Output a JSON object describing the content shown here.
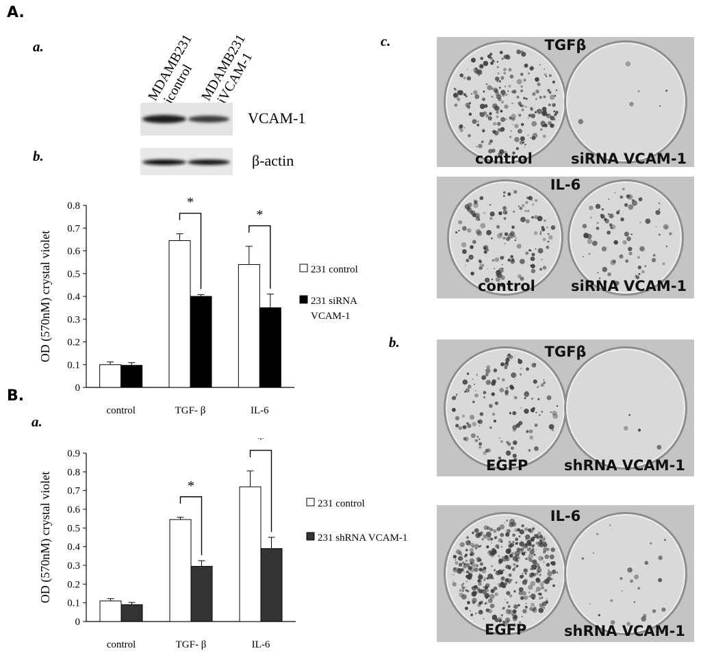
{
  "panels": {
    "A": "A.",
    "B": "B.",
    "a_top": "a.",
    "b_top": "b.",
    "c_top": "c.",
    "b_right": "b.",
    "a_bottom": "a."
  },
  "western": {
    "lane1_line1": "MDAMB231",
    "lane1_line2": "sicontrol",
    "lane2_line1": "MDAMB231",
    "lane2_line2": "siVCAM-1",
    "blot1_label": "VCAM-1",
    "blot2_label": "β-actin"
  },
  "photos": {
    "c1": {
      "top_label": "TGFβ",
      "left_label": "control",
      "right_label": "siRNA VCAM-1"
    },
    "c2": {
      "top_label": "IL-6",
      "left_label": "control",
      "right_label": "siRNA VCAM-1"
    },
    "b1": {
      "top_label": "TGFβ",
      "left_label": "EGFP",
      "right_label": "shRNA VCAM-1"
    },
    "b2": {
      "top_label": "IL-6",
      "left_label": "EGFP",
      "right_label": "shRNA VCAM-1"
    }
  },
  "chart_data": [
    {
      "type": "bar",
      "ylabel": "OD (570nM) crystal violet",
      "categories": [
        "control",
        "TGF- β",
        "IL-6"
      ],
      "ylim": [
        0,
        0.8
      ],
      "yticks": [
        "0",
        "0.1",
        "0.2",
        "0.3",
        "0.4",
        "0.5",
        "0.6",
        "0.7",
        "0.8"
      ],
      "series": [
        {
          "name": "231 control",
          "color": "#ffffff",
          "values": [
            0.1,
            0.645,
            0.54
          ],
          "errors": [
            0.012,
            0.03,
            0.08
          ]
        },
        {
          "name": "231 siRNA VCAM-1",
          "legend_line1": "231 siRNA",
          "legend_line2": "VCAM-1",
          "color": "#000000",
          "values": [
            0.097,
            0.4,
            0.35
          ],
          "errors": [
            0.012,
            0.008,
            0.06
          ]
        }
      ],
      "significance": [
        "*",
        "*"
      ],
      "legend": "right"
    },
    {
      "type": "bar",
      "ylabel": "OD (570nM) crystal violet",
      "categories": [
        "control",
        "TGF- β",
        "IL-6"
      ],
      "ylim": [
        0,
        0.9
      ],
      "yticks": [
        "0",
        "0.1",
        "0.2",
        "0.3",
        "0.4",
        "0.5",
        "0.6",
        "0.7",
        "0.8",
        "0.9"
      ],
      "series": [
        {
          "name": "231 control",
          "color": "#ffffff",
          "values": [
            0.11,
            0.545,
            0.72
          ],
          "errors": [
            0.012,
            0.012,
            0.085
          ]
        },
        {
          "name": "231 shRNA VCAM-1",
          "color": "#333333",
          "values": [
            0.09,
            0.295,
            0.39
          ],
          "errors": [
            0.012,
            0.03,
            0.06
          ]
        }
      ],
      "significance": [
        "*",
        "*"
      ],
      "legend": "right"
    }
  ]
}
